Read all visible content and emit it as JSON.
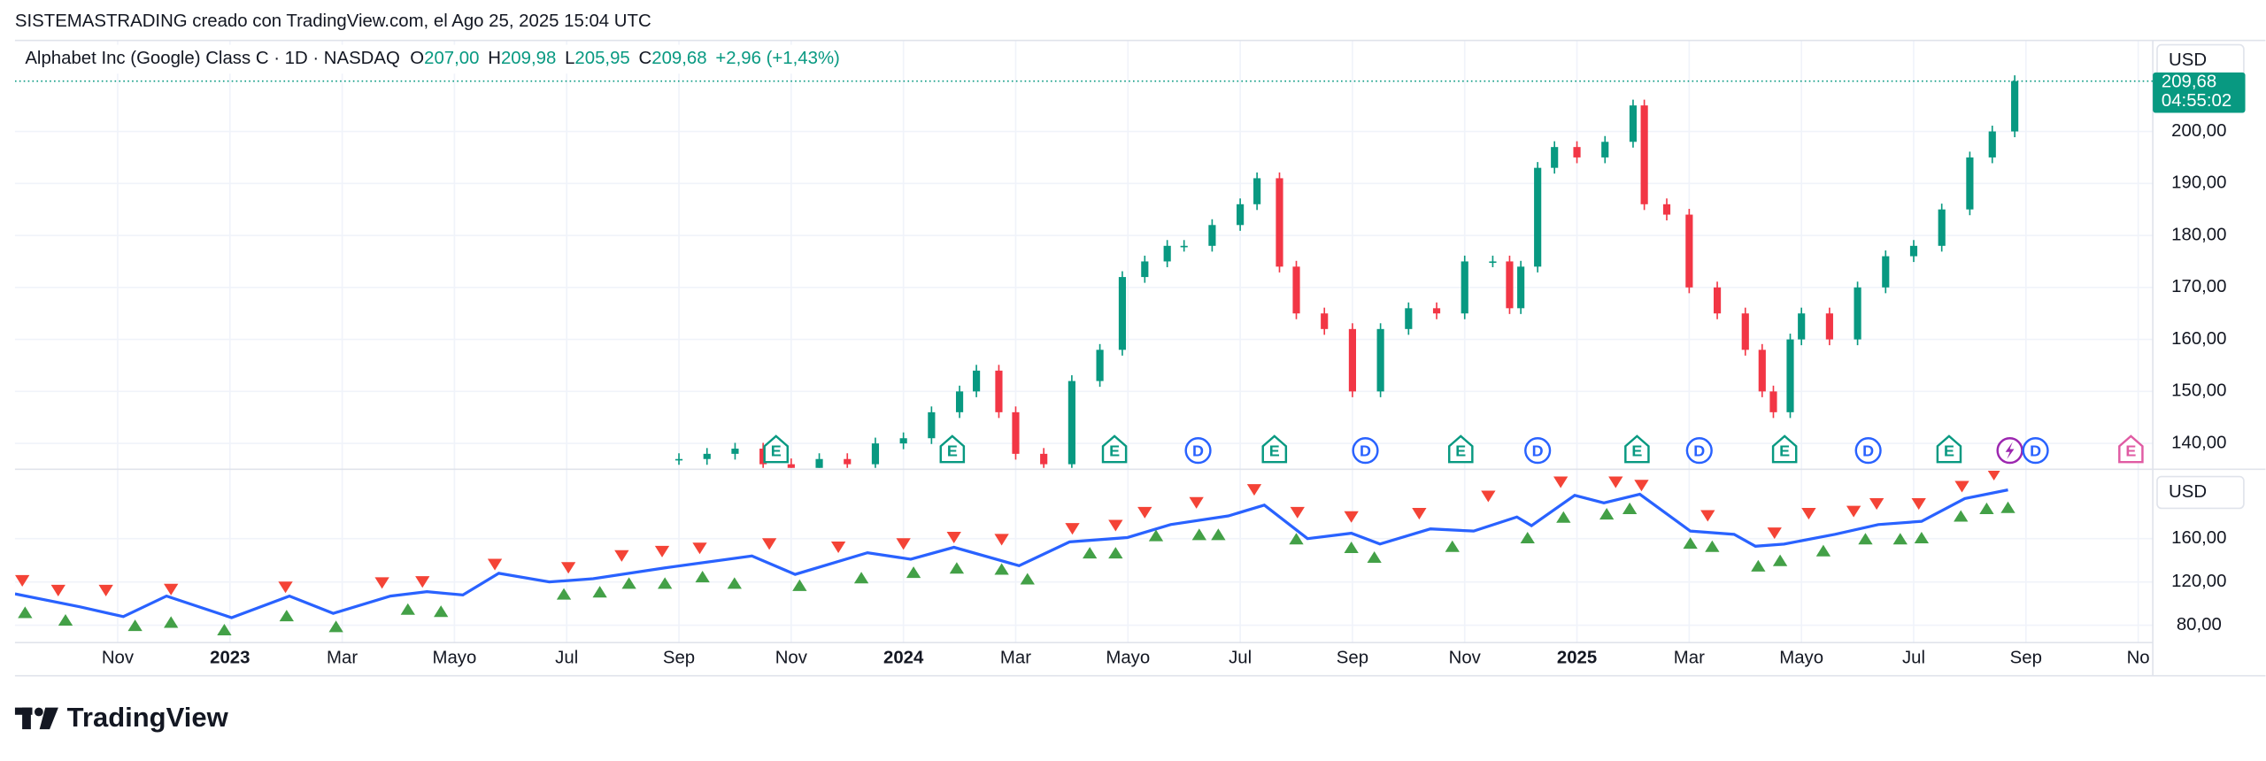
{
  "header": {
    "credit": "SISTEMASTRADING creado con TradingView.com, el Ago 25, 2025 15:04 UTC"
  },
  "footer": {
    "logo": "TradingView"
  },
  "chart_data": [
    {
      "type": "candlestick",
      "symbol": "Alphabet Inc (Google) Class C · 1D · NASDAQ",
      "ohlc": [
        {
          "label": "O",
          "value": "207,00"
        },
        {
          "label": "H",
          "value": "209,98"
        },
        {
          "label": "L",
          "value": "205,95"
        },
        {
          "label": "C",
          "value": "209,68"
        }
      ],
      "change": "+2,96 (+1,43%)",
      "currency": "USD",
      "last_price": {
        "value": 209.68,
        "label": "209,68"
      },
      "countdown": "04:55:02",
      "x": [
        10,
        10.5,
        11,
        11.5,
        12,
        12.5,
        13,
        13.5,
        14,
        14.5,
        15,
        15.3,
        15.7,
        16,
        16.5,
        17,
        17.5,
        17.9,
        18.3,
        18.7,
        19,
        19.5,
        20,
        20.3,
        20.7,
        21,
        21.5,
        22,
        22.5,
        23,
        23.5,
        24,
        24.5,
        24.8,
        25,
        25.3,
        25.6,
        26,
        26.5,
        27,
        27.2,
        27.6,
        28,
        28.5,
        29,
        29.3,
        29.5,
        29.8,
        30,
        30.5,
        31,
        31.5,
        32,
        32.5,
        33,
        33.4,
        33.8
      ],
      "values": [
        137,
        138,
        139,
        136,
        135,
        137,
        136,
        140,
        141,
        146,
        150,
        154,
        146,
        138,
        136,
        152,
        158,
        172,
        175,
        178,
        178,
        182,
        186,
        191,
        174,
        165,
        162,
        150,
        162,
        166,
        165,
        175,
        175,
        166,
        174,
        193,
        197,
        195,
        198,
        205,
        186,
        184,
        170,
        165,
        158,
        150,
        146,
        160,
        165,
        160,
        170,
        176,
        178,
        185,
        195,
        200,
        209.68
      ],
      "up_color": "#089981",
      "down_color": "#f23645",
      "xlim": [
        -1.83,
        36.26
      ],
      "ylim": [
        135.3,
        217.5
      ],
      "yticks": [
        {
          "value": 140,
          "label": "140,00"
        },
        {
          "value": 150,
          "label": "150,00"
        },
        {
          "value": 160,
          "label": "160,00"
        },
        {
          "value": 170,
          "label": "170,00"
        },
        {
          "value": 180,
          "label": "180,00"
        },
        {
          "value": 190,
          "label": "190,00"
        },
        {
          "value": 200,
          "label": "200,00"
        }
      ],
      "grid": true,
      "events": [
        {
          "x": 11.73,
          "label": "E",
          "color": "#089981"
        },
        {
          "x": 14.87,
          "label": "E",
          "color": "#089981"
        },
        {
          "x": 17.76,
          "label": "E",
          "color": "#089981"
        },
        {
          "x": 19.25,
          "label": "D",
          "color": "#2962ff"
        },
        {
          "x": 20.61,
          "label": "E",
          "color": "#089981"
        },
        {
          "x": 22.23,
          "label": "D",
          "color": "#2962ff"
        },
        {
          "x": 23.93,
          "label": "E",
          "color": "#089981"
        },
        {
          "x": 25.3,
          "label": "D",
          "color": "#2962ff"
        },
        {
          "x": 27.07,
          "label": "E",
          "color": "#089981"
        },
        {
          "x": 28.18,
          "label": "D",
          "color": "#2962ff"
        },
        {
          "x": 29.7,
          "label": "E",
          "color": "#089981"
        },
        {
          "x": 31.19,
          "label": "D",
          "color": "#2962ff"
        },
        {
          "x": 32.63,
          "label": "E",
          "color": "#089981"
        },
        {
          "x": 34.17,
          "label": "D",
          "color": "#2962ff"
        },
        {
          "x": 35.87,
          "label": "E",
          "color": "#e05ba3"
        }
      ]
    },
    {
      "type": "line",
      "currency": "USD",
      "x": [
        -1.83,
        -0.67,
        0.1,
        0.87,
        2.03,
        3.06,
        3.84,
        4.86,
        5.51,
        6.15,
        6.79,
        7.69,
        8.47,
        9.75,
        11.3,
        12.07,
        13.36,
        14.13,
        14.9,
        16.06,
        16.96,
        17.99,
        18.76,
        19.79,
        20.43,
        21.2,
        21.98,
        22.49,
        23.39,
        24.16,
        24.93,
        25.19,
        25.96,
        26.48,
        27.12,
        28.02,
        28.8,
        29.18,
        29.69,
        30.6,
        31.37,
        32.14,
        32.91,
        33.68
      ],
      "values": [
        109,
        97,
        88,
        107,
        87,
        107,
        91,
        107,
        111,
        108,
        128,
        120,
        123,
        133,
        144,
        127,
        147,
        141,
        152,
        135,
        157,
        161,
        173,
        181,
        191,
        160,
        165,
        155,
        169,
        167,
        180,
        172,
        200,
        193,
        201,
        167,
        164,
        153,
        155,
        164,
        173,
        176,
        197,
        205
      ],
      "color": "#2962ff",
      "xlim": [
        -1.83,
        36.26
      ],
      "ylim": [
        64,
        222.7
      ],
      "yticks": [
        {
          "value": 80,
          "label": "80,00"
        },
        {
          "value": 120,
          "label": "120,00"
        },
        {
          "value": 160,
          "label": "160,00"
        }
      ],
      "xticks": [
        {
          "value": 0,
          "label": "Nov"
        },
        {
          "value": 2,
          "label": "2023"
        },
        {
          "value": 4,
          "label": "Mar"
        },
        {
          "value": 6,
          "label": "Mayo"
        },
        {
          "value": 8,
          "label": "Jul"
        },
        {
          "value": 10,
          "label": "Sep"
        },
        {
          "value": 12,
          "label": "Nov"
        },
        {
          "value": 14,
          "label": "2024"
        },
        {
          "value": 16,
          "label": "Mar"
        },
        {
          "value": 18,
          "label": "Mayo"
        },
        {
          "value": 20,
          "label": "Jul"
        },
        {
          "value": 22,
          "label": "Sep"
        },
        {
          "value": 24,
          "label": "Nov"
        },
        {
          "value": 26,
          "label": "2025"
        },
        {
          "value": 28,
          "label": "Mar"
        },
        {
          "value": 30,
          "label": "Mayo"
        },
        {
          "value": 32,
          "label": "Jul"
        },
        {
          "value": 34,
          "label": "Sep"
        },
        {
          "value": 36,
          "label": "No"
        }
      ],
      "grid": true,
      "signals": [
        {
          "direction": "down",
          "color": "#f44336",
          "x": [
            -1.7,
            -1.06,
            -0.21,
            0.95,
            2.99,
            4.71,
            5.43,
            6.72,
            8.03,
            8.98,
            9.7,
            10.37,
            11.61,
            12.84,
            14.0,
            14.9,
            15.75,
            17.01,
            17.78,
            18.3,
            19.22,
            20.25,
            21.02,
            21.98,
            23.19,
            24.42,
            25.71,
            26.69,
            27.15,
            28.33,
            29.52,
            30.13,
            30.93,
            31.34,
            32.09,
            32.86,
            33.43
          ],
          "values": [
            121,
            112,
            112,
            113,
            115,
            119,
            120,
            136,
            133,
            144,
            148,
            151,
            155,
            152,
            155,
            161,
            159,
            169,
            172,
            184,
            193,
            205,
            184,
            180,
            183,
            199,
            212,
            212,
            209,
            181,
            165,
            183,
            185,
            192,
            192,
            208,
            219
          ]
        },
        {
          "direction": "up",
          "color": "#43a047",
          "x": [
            -1.65,
            -0.93,
            0.31,
            0.95,
            1.9,
            3.01,
            3.89,
            5.17,
            5.76,
            7.95,
            8.59,
            9.11,
            9.75,
            10.42,
            10.99,
            12.15,
            13.25,
            14.18,
            14.95,
            15.75,
            16.21,
            17.32,
            17.78,
            18.5,
            19.27,
            19.61,
            21.0,
            21.98,
            22.39,
            23.78,
            25.12,
            25.76,
            26.53,
            26.94,
            28.02,
            28.41,
            29.23,
            29.62,
            30.39,
            31.14,
            31.76,
            32.14,
            32.84,
            33.3,
            33.68
          ],
          "values": [
            92,
            85,
            80,
            83,
            76,
            89,
            79,
            95,
            93,
            109,
            111,
            119,
            119,
            125,
            119,
            117,
            124,
            129,
            133,
            132,
            123,
            147,
            147,
            163,
            164,
            164,
            160,
            152,
            143,
            153,
            161,
            180,
            183,
            188,
            156,
            153,
            135,
            140,
            149,
            160,
            160,
            161,
            181,
            188,
            189
          ]
        }
      ]
    }
  ]
}
